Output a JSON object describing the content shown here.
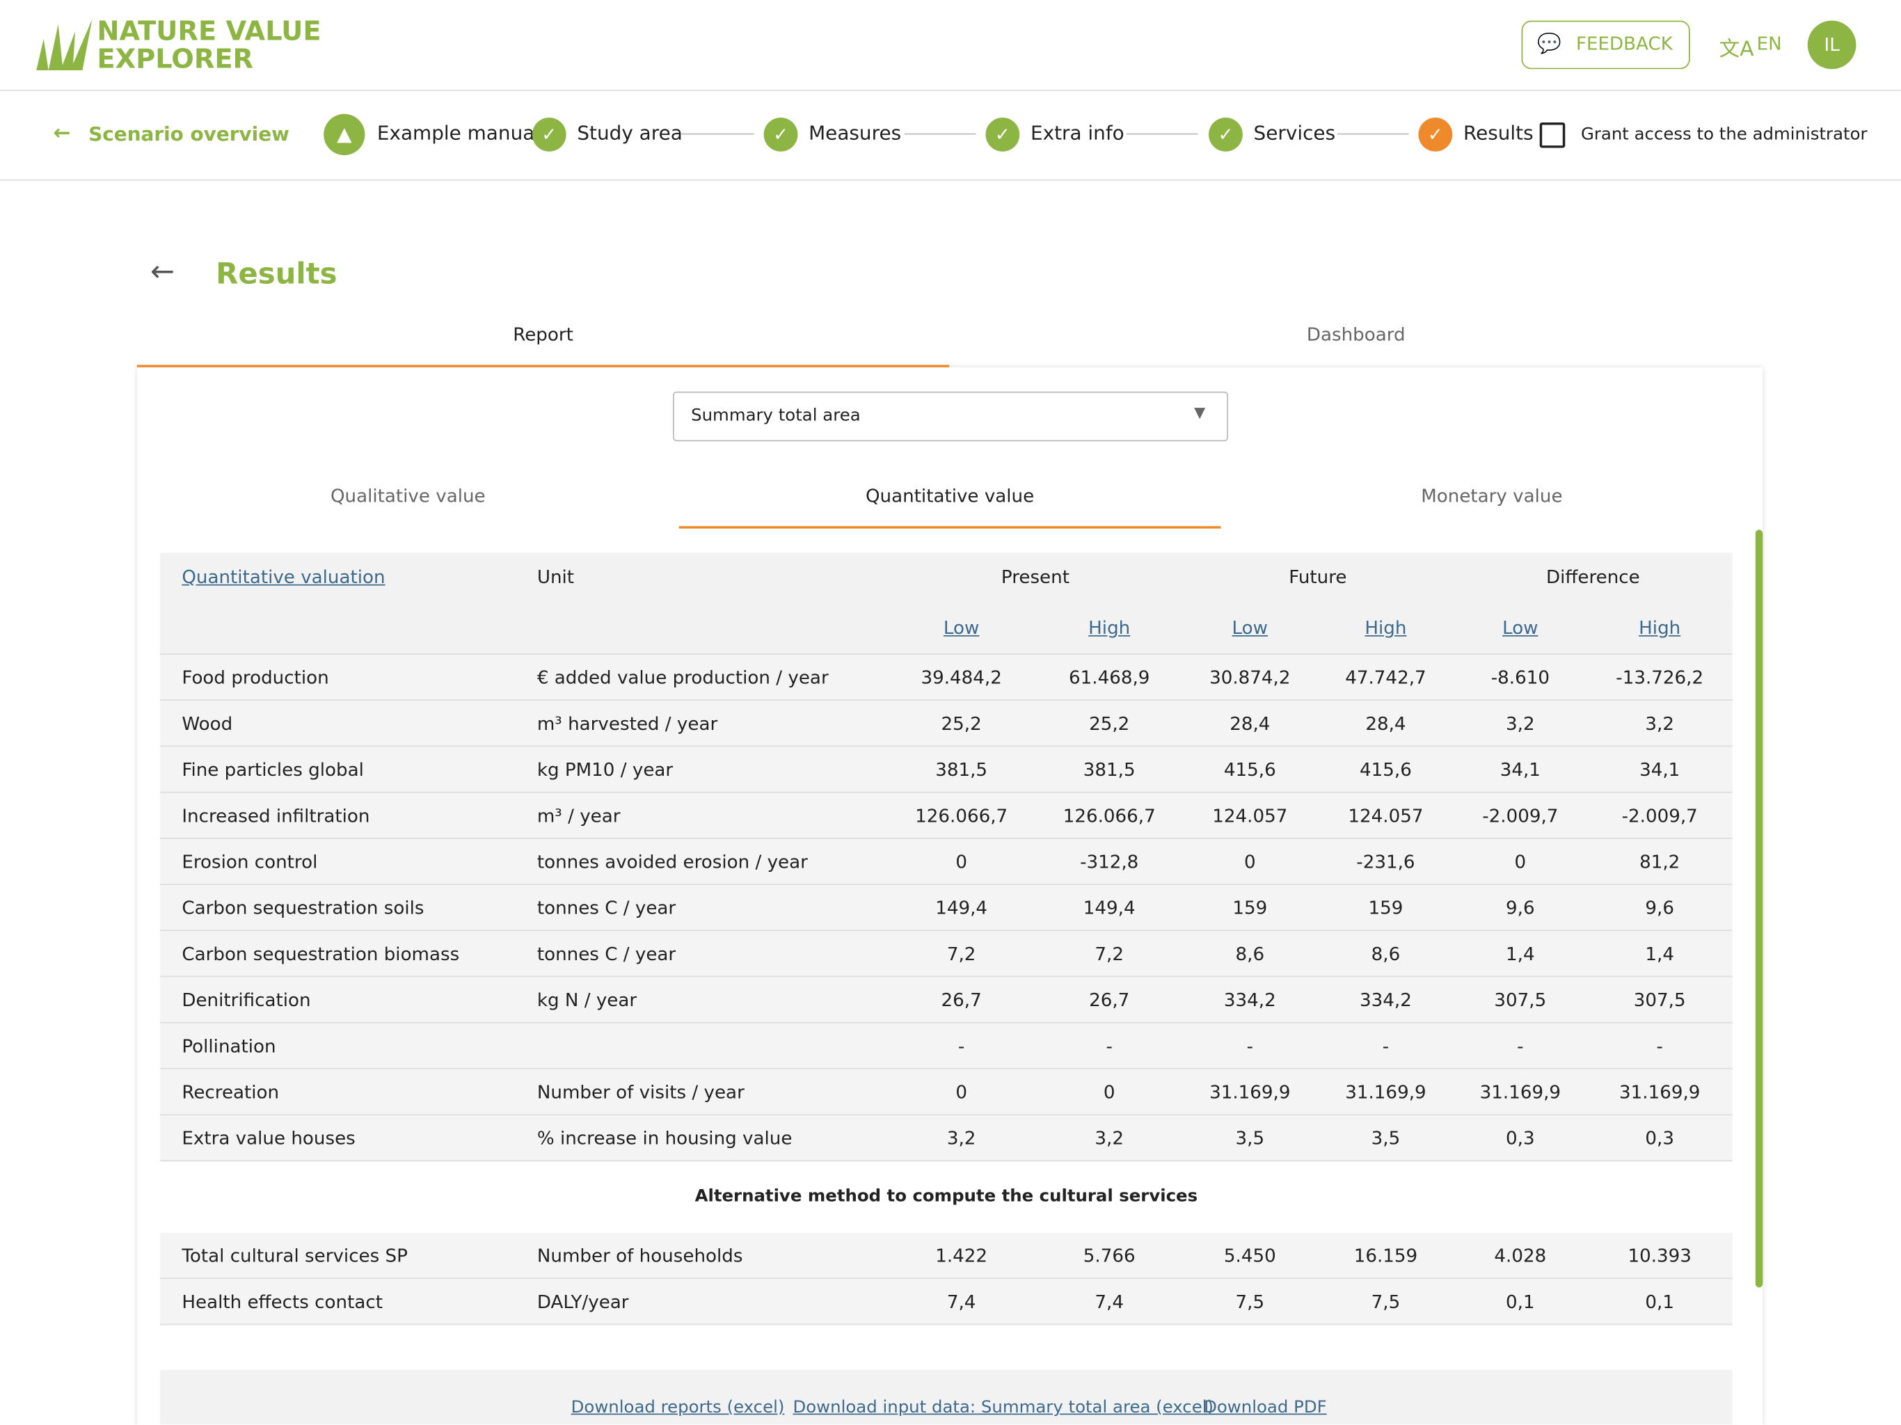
{
  "header": {
    "logo_line1": "NATURE VALUE",
    "logo_line2": "EXPLORER",
    "feedback": "FEEDBACK",
    "language": "EN",
    "avatar": "IL"
  },
  "nav": {
    "back": "Scenario overview",
    "scenario": "Example manual",
    "steps": [
      "Study area",
      "Measures",
      "Extra info",
      "Services",
      "Results"
    ],
    "grant": "Grant access to the administrator"
  },
  "page": {
    "title": "Results",
    "tabs": [
      "Report",
      "Dashboard"
    ],
    "select": "Summary total area",
    "subtabs": [
      "Qualitative value",
      "Quantitative value",
      "Monetary value"
    ]
  },
  "table": {
    "headers": [
      "Quantitative valuation",
      "Unit",
      "Present",
      "Future",
      "Difference"
    ],
    "subheaders": [
      "Low",
      "High",
      "Low",
      "High",
      "Low",
      "High"
    ],
    "rows": [
      [
        "Food production",
        "€ added value production / year",
        "39.484,2",
        "61.468,9",
        "30.874,2",
        "47.742,7",
        "-8.610",
        "-13.726,2"
      ],
      [
        "Wood",
        "m³ harvested / year",
        "25,2",
        "25,2",
        "28,4",
        "28,4",
        "3,2",
        "3,2"
      ],
      [
        "Fine particles global",
        "kg PM10 / year",
        "381,5",
        "381,5",
        "415,6",
        "415,6",
        "34,1",
        "34,1"
      ],
      [
        "Increased infiltration",
        "m³ / year",
        "126.066,7",
        "126.066,7",
        "124.057",
        "124.057",
        "-2.009,7",
        "-2.009,7"
      ],
      [
        "Erosion control",
        "tonnes avoided erosion / year",
        "0",
        "-312,8",
        "0",
        "-231,6",
        "0",
        "81,2"
      ],
      [
        "Carbon sequestration soils",
        "tonnes C / year",
        "149,4",
        "149,4",
        "159",
        "159",
        "9,6",
        "9,6"
      ],
      [
        "Carbon sequestration biomass",
        "tonnes C / year",
        "7,2",
        "7,2",
        "8,6",
        "8,6",
        "1,4",
        "1,4"
      ],
      [
        "Denitrification",
        "kg N / year",
        "26,7",
        "26,7",
        "334,2",
        "334,2",
        "307,5",
        "307,5"
      ],
      [
        "Pollination",
        null,
        "-",
        "-",
        "-",
        "-",
        "-",
        "-"
      ],
      [
        "Recreation",
        "Number of visits / year",
        "0",
        "0",
        "31.169,9",
        "31.169,9",
        "31.169,9",
        "31.169,9"
      ],
      [
        "Extra value houses",
        "% increase in housing value",
        "3,2",
        "3,2",
        "3,5",
        "3,5",
        "0,3",
        "0,3"
      ]
    ],
    "section": "Alternative method to compute the cultural services",
    "rows2": [
      [
        "Total cultural services SP",
        "Number of households",
        "1.422",
        "5.766",
        "5.450",
        "16.159",
        "4.028",
        "10.393"
      ],
      [
        "Health effects contact",
        "DALY/year",
        "7,4",
        "7,4",
        "7,5",
        "7,5",
        "0,1",
        "0,1"
      ]
    ]
  },
  "downloads": [
    "Download reports (excel)",
    "Download input data: Summary total area (excel)",
    "Download PDF"
  ]
}
